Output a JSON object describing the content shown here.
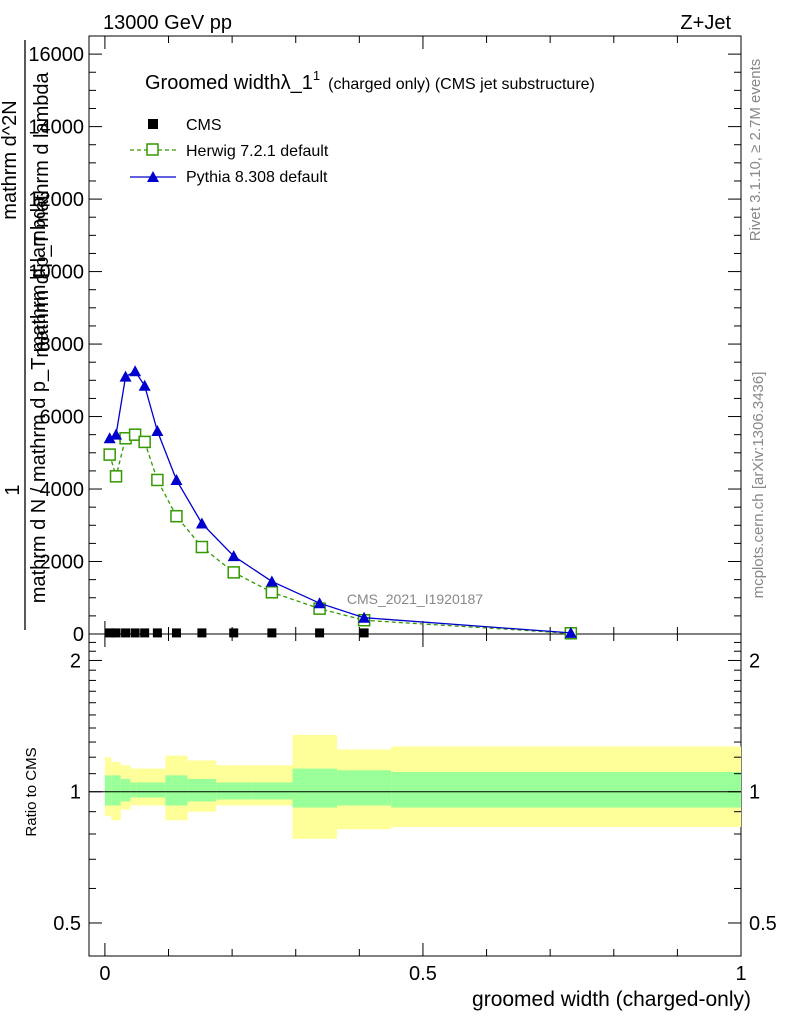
{
  "header": {
    "left": "13000 GeV pp",
    "right": "Z+Jet"
  },
  "side": {
    "rivet": "Rivet 3.1.10, ≥ 2.7M events",
    "mcplots": "mcplots.cern.ch [arXiv:1306.3436]"
  },
  "watermark": "CMS_2021_I1920187",
  "chart_data": {
    "type": "line",
    "title_main": "Groomed widthλ_1",
    "title_sup": "1",
    "title_rest": "(charged only) (CMS jet substructure)",
    "xlabel": "groomed width (charged-only)",
    "ylabel_top": "1",
    "ylabel_num": "mathrm d N / mathrm d p_T mathrm d lambda",
    "ylabel_den_a": "mathrm d p_T mathrm d lambda",
    "ylabel_den_b": "mathrm d^2N",
    "xlim": [
      -0.025,
      1.0
    ],
    "ylim": [
      0,
      16500
    ],
    "xticks": [
      "0",
      "0.5",
      "1"
    ],
    "xtick_values": [
      0,
      0.5,
      1
    ],
    "yticks": [
      "0",
      "2000",
      "4000",
      "6000",
      "8000",
      "10000",
      "12000",
      "14000",
      "16000"
    ],
    "ytick_values": [
      0,
      2000,
      4000,
      6000,
      8000,
      10000,
      12000,
      14000,
      16000
    ],
    "legend_position": "top-left",
    "series": [
      {
        "name": "CMS",
        "color": "#000000",
        "marker": "square-filled",
        "x": [
          0.0075,
          0.0175,
          0.0325,
          0.0475,
          0.0625,
          0.0825,
          0.1125,
          0.1525,
          0.2025,
          0.2625,
          0.3375,
          0.4075,
          0.7325
        ],
        "y": [
          30,
          30,
          30,
          30,
          30,
          30,
          30,
          30,
          30,
          30,
          30,
          30,
          30
        ]
      },
      {
        "name": "Herwig 7.2.1 default",
        "color": "#339900",
        "marker": "square-open",
        "line": "dashed",
        "x": [
          0.0075,
          0.0175,
          0.0325,
          0.0475,
          0.0625,
          0.0825,
          0.1125,
          0.1525,
          0.2025,
          0.2625,
          0.3375,
          0.4075,
          0.7325
        ],
        "y": [
          4950,
          4350,
          5400,
          5500,
          5300,
          4250,
          3250,
          2400,
          1700,
          1150,
          700,
          380,
          20
        ]
      },
      {
        "name": "Pythia 8.308 default",
        "color": "#0000cc",
        "marker": "triangle-filled",
        "line": "solid",
        "x": [
          0.0075,
          0.0175,
          0.0325,
          0.0475,
          0.0625,
          0.0825,
          0.1125,
          0.1525,
          0.2025,
          0.2625,
          0.3375,
          0.4075,
          0.7325
        ],
        "y": [
          5400,
          5500,
          7100,
          7250,
          6850,
          5600,
          4250,
          3050,
          2150,
          1450,
          850,
          450,
          30
        ]
      }
    ],
    "ratio": {
      "ylabel": "Ratio to CMS",
      "ylim": [
        0.42,
        2.3
      ],
      "yticks": [
        "0.5",
        "1",
        "2"
      ],
      "ytick_values": [
        0.5,
        1,
        2
      ],
      "edges": [
        0,
        0.005,
        0.01,
        0.025,
        0.04,
        0.05,
        0.095,
        0.13,
        0.175,
        0.23,
        0.295,
        0.365,
        0.45,
        1.0
      ],
      "band_inner": [
        [
          0.93,
          1.09
        ],
        [
          0.93,
          1.09
        ],
        [
          0.93,
          1.09
        ],
        [
          0.95,
          1.07
        ],
        [
          0.97,
          1.05
        ],
        [
          0.97,
          1.05
        ],
        [
          0.93,
          1.09
        ],
        [
          0.95,
          1.07
        ],
        [
          0.96,
          1.05
        ],
        [
          0.96,
          1.05
        ],
        [
          0.92,
          1.13
        ],
        [
          0.93,
          1.12
        ],
        [
          0.92,
          1.11
        ]
      ],
      "band_outer": [
        [
          0.88,
          1.2
        ],
        [
          0.88,
          1.2
        ],
        [
          0.86,
          1.17
        ],
        [
          0.91,
          1.15
        ],
        [
          0.93,
          1.13
        ],
        [
          0.93,
          1.13
        ],
        [
          0.86,
          1.21
        ],
        [
          0.9,
          1.18
        ],
        [
          0.93,
          1.15
        ],
        [
          0.93,
          1.15
        ],
        [
          0.78,
          1.35
        ],
        [
          0.82,
          1.25
        ],
        [
          0.83,
          1.27
        ]
      ]
    }
  }
}
